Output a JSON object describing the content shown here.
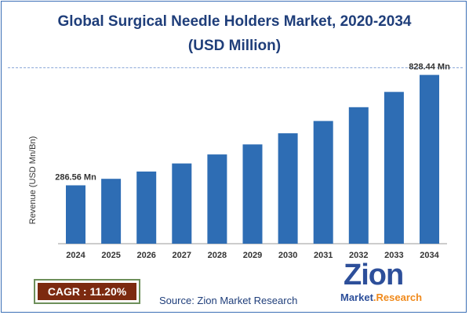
{
  "header": {
    "title_line1": "Global Surgical Needle Holders Market, 2020-2034",
    "title_line2": "(USD Million)"
  },
  "chart_data": {
    "type": "bar",
    "categories": [
      "2024",
      "2025",
      "2026",
      "2027",
      "2028",
      "2029",
      "2030",
      "2031",
      "2032",
      "2033",
      "2034"
    ],
    "values": [
      286.56,
      318.6,
      354.3,
      394.0,
      438.2,
      487.3,
      541.8,
      602.5,
      670.0,
      745.0,
      828.44
    ],
    "ylabel": "Revenue (USD Mn/Bn)",
    "xlabel": "",
    "ylim": [
      0,
      900
    ],
    "grid": false,
    "legend": "none",
    "data_labels": [
      {
        "index": 0,
        "text": "286.56 Mn"
      },
      {
        "index": 10,
        "text": "828.44 Mn"
      }
    ],
    "bar_color": "#2e6db4"
  },
  "footer": {
    "cagr_text": "CAGR : 11.20%",
    "source_text": "Source: Zion Market Research",
    "logo_main": "Zion",
    "logo_sub_part1": "Market",
    "logo_sub_part2": ".Research"
  },
  "colors": {
    "title": "#1f3e7a",
    "bar": "#2e6db4",
    "cagr_bg": "#7c2a10",
    "logo_blue": "#2d4f9a",
    "logo_orange": "#f08a1c"
  }
}
